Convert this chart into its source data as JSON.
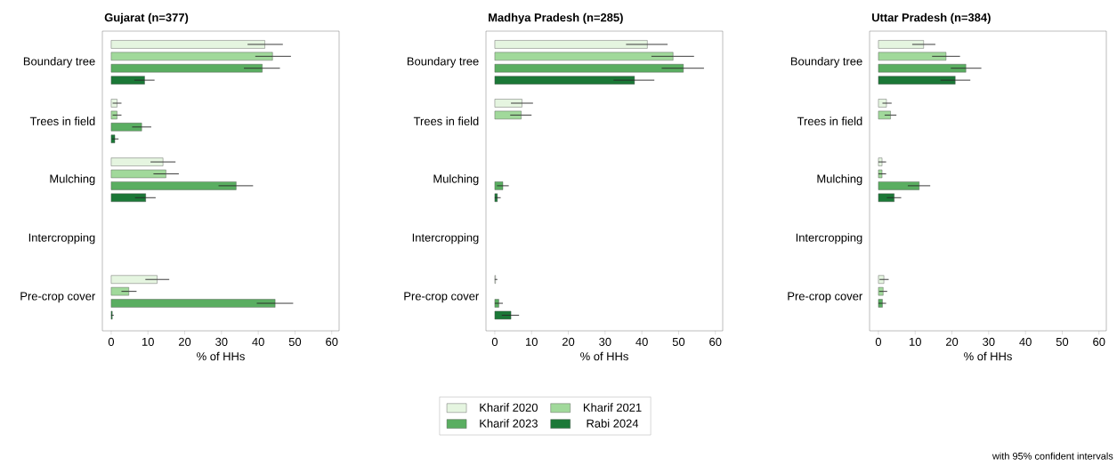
{
  "chart_data": [
    {
      "type": "bar",
      "orientation": "horizontal",
      "title": "Gujarat (n=377)",
      "xlabel": "% of HHs",
      "categories": [
        "Boundary tree",
        "Trees in field",
        "Mulching",
        "Intercropping",
        "Pre-crop cover"
      ],
      "xlim": [
        -2.4,
        62
      ],
      "xticks": [
        0,
        10,
        20,
        30,
        40,
        50,
        60
      ],
      "series": [
        {
          "color": "#e5f5e0",
          "values": [
            41.8,
            1.6,
            14.1,
            null,
            12.5
          ],
          "errors": [
            [
              37.1,
              46.7
            ],
            [
              0.4,
              2.8
            ],
            [
              10.7,
              17.5
            ],
            null,
            [
              9.3,
              15.8
            ]
          ]
        },
        {
          "color": "#a1d99b",
          "values": [
            43.9,
            1.6,
            14.9,
            null,
            4.8
          ],
          "errors": [
            [
              39.2,
              48.9
            ],
            [
              0.4,
              2.8
            ],
            [
              11.5,
              18.4
            ],
            null,
            [
              2.8,
              6.9
            ]
          ]
        },
        {
          "color": "#5aae61",
          "values": [
            41.1,
            8.3,
            34.0,
            null,
            44.6
          ],
          "errors": [
            [
              36.1,
              45.9
            ],
            [
              5.7,
              10.9
            ],
            [
              29.2,
              38.6
            ],
            null,
            [
              39.6,
              49.5
            ]
          ]
        },
        {
          "color": "#1b7837",
          "values": [
            9.1,
            1.0,
            9.4,
            null,
            0.3
          ],
          "errors": [
            [
              6.3,
              11.8
            ],
            [
              0.2,
              2.0
            ],
            [
              6.5,
              12.1
            ],
            null,
            [
              0,
              0.7
            ]
          ]
        }
      ]
    },
    {
      "type": "bar",
      "orientation": "horizontal",
      "title": "Madhya Pradesh (n=285)",
      "xlabel": "% of HHs",
      "categories": [
        "Boundary tree",
        "Trees in field",
        "Mulching",
        "Intercropping",
        "Pre-crop cover"
      ],
      "xlim": [
        -2.4,
        62
      ],
      "xticks": [
        0,
        10,
        20,
        30,
        40,
        50,
        60
      ],
      "legend": "bottom",
      "series": [
        {
          "name": "Kharif 2020",
          "color": "#e5f5e0",
          "values": [
            41.5,
            7.4,
            null,
            null,
            0.2
          ],
          "errors": [
            [
              35.7,
              47.0
            ],
            [
              4.4,
              10.4
            ],
            null,
            null,
            [
              0,
              0.7
            ]
          ]
        },
        {
          "name": "Kharif 2021",
          "color": "#a1d99b",
          "values": [
            48.5,
            7.2,
            null,
            null,
            null
          ],
          "errors": [
            [
              42.6,
              54.2
            ],
            [
              4.2,
              10.0
            ],
            null,
            null,
            null
          ]
        },
        {
          "name": "Kharif 2023",
          "color": "#5aae61",
          "values": [
            51.3,
            null,
            2.2,
            null,
            1.1
          ],
          "errors": [
            [
              45.4,
              56.9
            ],
            null,
            [
              0.6,
              3.8
            ],
            null,
            [
              0,
              2.2
            ]
          ]
        },
        {
          "name": "Rabi 2024",
          "color": "#1b7837",
          "values": [
            38.0,
            null,
            0.7,
            null,
            4.4
          ],
          "errors": [
            [
              32.3,
              43.4
            ],
            null,
            [
              0,
              1.6
            ],
            null,
            [
              1.9,
              6.6
            ]
          ]
        }
      ]
    },
    {
      "type": "bar",
      "orientation": "horizontal",
      "title": "Uttar Pradesh (n=384)",
      "xlabel": "% of HHs",
      "categories": [
        "Boundary tree",
        "Trees in field",
        "Mulching",
        "Intercropping",
        "Pre-crop cover"
      ],
      "xlim": [
        -2.4,
        62
      ],
      "xticks": [
        0,
        10,
        20,
        30,
        40,
        50,
        60
      ],
      "annotations": [
        "with 95% confident intervals"
      ],
      "series": [
        {
          "color": "#e5f5e0",
          "values": [
            12.3,
            2.2,
            1.0,
            null,
            1.5
          ],
          "errors": [
            [
              9.2,
              15.5
            ],
            [
              1.1,
              3.6
            ],
            [
              0,
              2.1
            ],
            null,
            [
              0.3,
              2.8
            ]
          ]
        },
        {
          "color": "#a1d99b",
          "values": [
            18.4,
            3.3,
            1.0,
            null,
            1.3
          ],
          "errors": [
            [
              14.6,
              22.2
            ],
            [
              1.7,
              4.9
            ],
            [
              0,
              2.1
            ],
            null,
            [
              0.2,
              2.4
            ]
          ]
        },
        {
          "color": "#5aae61",
          "values": [
            23.8,
            null,
            11.1,
            null,
            1.1
          ],
          "errors": [
            [
              19.7,
              28.0
            ],
            null,
            [
              8.0,
              14.1
            ],
            null,
            [
              0,
              2.1
            ]
          ]
        },
        {
          "color": "#1b7837",
          "values": [
            20.9,
            null,
            4.3,
            null,
            null
          ],
          "errors": [
            [
              16.9,
              25.0
            ],
            null,
            [
              2.3,
              6.2
            ],
            null,
            null
          ]
        }
      ]
    }
  ]
}
